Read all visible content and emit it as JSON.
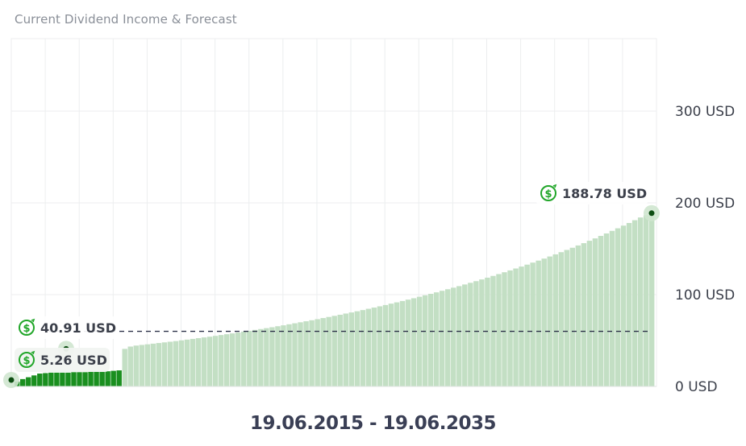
{
  "header": {
    "title": "Current Dividend Income & Forecast"
  },
  "footer": {
    "date_range": "19.06.2015 - 19.06.2035"
  },
  "colors": {
    "bar_forecast": "#c3dfc4",
    "bar_current": "#1a8f1f",
    "grid": "#eceeef",
    "dashed": "#2c3148",
    "icon_green": "#21a629",
    "marker": "#0d4d12"
  },
  "chart_data": {
    "type": "bar",
    "x_start": "19.06.2015",
    "x_end": "19.06.2035",
    "ylim": [
      0,
      380
    ],
    "yticks": [
      0,
      100,
      200,
      300
    ],
    "ytick_labels": [
      "0 USD",
      "100 USD",
      "200 USD",
      "300 USD"
    ],
    "series": [
      {
        "values": [
          5.26,
          8,
          10,
          12,
          14,
          14.5,
          15,
          15,
          15,
          15,
          15.5,
          15.5,
          15.5,
          16,
          16,
          16,
          16.5,
          17,
          17.5,
          40.91,
          43.44,
          44.53,
          45.22,
          45.9,
          46.6,
          47.3,
          48,
          48.7,
          49.4,
          50.2,
          51,
          51.8,
          52.6,
          53.4,
          54.2,
          55.1,
          56,
          56.9,
          57.8,
          58.7,
          59.7,
          60.6,
          61.6,
          62.5,
          63.5,
          64.5,
          65.6,
          66.6,
          67.7,
          68.8,
          69.9,
          71,
          72.1,
          73.3,
          74.5,
          75.7,
          76.9,
          78.1,
          79.4,
          80.6,
          81.9,
          83.2,
          84.6,
          85.9,
          87.3,
          88.7,
          90.2,
          91.6,
          93.1,
          94.6,
          96.1,
          97.7,
          99.3,
          100.9,
          102.5,
          104.2,
          105.9,
          107.6,
          109.3,
          111.1,
          112.9,
          114.7,
          116.6,
          118.5,
          120.4,
          122.4,
          124.4,
          126.4,
          128.5,
          130.6,
          132.7,
          134.9,
          137.1,
          139.3,
          141.6,
          143.9,
          146.3,
          148.7,
          151.1,
          153.6,
          156.1,
          158.7,
          161.3,
          164,
          166.7,
          169.5,
          172.3,
          175.2,
          178.1,
          181.1,
          184.1,
          186.5,
          188.78
        ]
      }
    ],
    "current_bar_count": 19,
    "dashed_level": 60,
    "annotations": [
      {
        "label": "188.78 USD",
        "value": 188.78
      },
      {
        "label": "40.91 USD",
        "value": 40.91
      },
      {
        "label": "5.26 USD",
        "value": 5.26
      }
    ]
  }
}
